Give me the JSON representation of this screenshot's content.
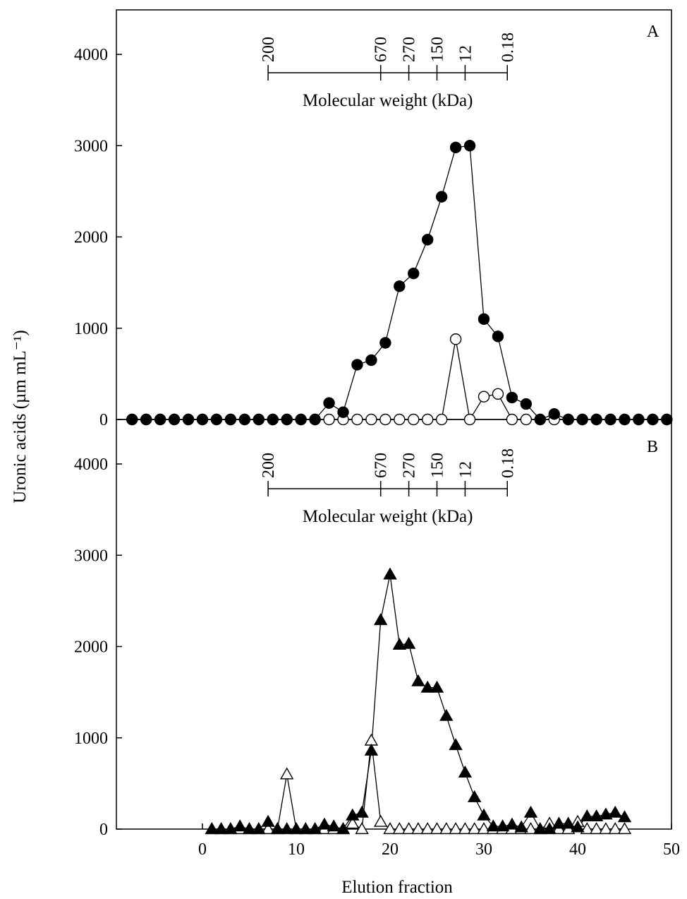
{
  "chart_data": [
    {
      "type": "scatter",
      "panel": "A",
      "ylabel": "Uronic acids (µm mL⁻¹)",
      "ylim": [
        0,
        4400
      ],
      "yticks": [
        "0",
        "1000",
        "2000",
        "3000",
        "4000"
      ],
      "xlim": [
        -8,
        50
      ],
      "mw_scale": {
        "title": "Molecular weight (kDa)",
        "labels": [
          "200",
          "670",
          "270",
          "150",
          "12",
          "0.18"
        ],
        "fractions": [
          7,
          19,
          22,
          25,
          28,
          32.5
        ]
      },
      "series": [
        {
          "marker": "filled-circle",
          "x": [
            -7.5,
            -6,
            -4.5,
            -3,
            -1.5,
            0,
            1.5,
            3,
            4.5,
            6,
            7.5,
            9,
            10.5,
            12,
            13.5,
            15,
            16.5,
            18,
            19.5,
            21,
            22.5,
            24,
            25.5,
            27,
            28.5,
            30,
            31.5,
            33,
            34.5,
            36,
            37.5,
            39,
            40.5,
            42,
            43.5,
            45,
            46.5,
            48,
            49.5
          ],
          "values": [
            0,
            0,
            0,
            0,
            0,
            0,
            0,
            0,
            0,
            0,
            0,
            0,
            0,
            0,
            180,
            80,
            600,
            650,
            840,
            1460,
            1600,
            1970,
            2440,
            2980,
            3000,
            1100,
            910,
            240,
            170,
            0,
            60,
            0,
            0,
            0,
            0,
            0,
            0,
            0,
            0
          ]
        },
        {
          "marker": "open-circle",
          "x": [
            -7.5,
            -6,
            -4.5,
            -3,
            -1.5,
            0,
            1.5,
            3,
            4.5,
            6,
            7.5,
            9,
            10.5,
            12,
            13.5,
            15,
            16.5,
            18,
            19.5,
            21,
            22.5,
            24,
            25.5,
            27,
            28.5,
            30,
            31.5,
            33,
            34.5,
            36,
            37.5,
            39,
            40.5,
            42,
            43.5,
            45,
            46.5,
            48,
            49.5
          ],
          "values": [
            0,
            0,
            0,
            0,
            0,
            0,
            0,
            0,
            0,
            0,
            0,
            0,
            0,
            0,
            0,
            0,
            0,
            0,
            0,
            0,
            0,
            0,
            0,
            880,
            0,
            250,
            280,
            0,
            0,
            0,
            0,
            0,
            0,
            0,
            0,
            0,
            0,
            0,
            0
          ]
        }
      ]
    },
    {
      "type": "scatter",
      "panel": "B",
      "xlabel": "Elution fraction",
      "ylim": [
        0,
        4400
      ],
      "yticks": [
        "0",
        "1000",
        "2000",
        "3000",
        "4000"
      ],
      "xlim": [
        -8,
        50
      ],
      "xticks": [
        "0",
        "10",
        "20",
        "30",
        "40",
        "50"
      ],
      "mw_scale": {
        "title": "Molecular weight (kDa)",
        "labels": [
          "200",
          "670",
          "270",
          "150",
          "12",
          "0.18"
        ],
        "fractions": [
          7,
          19,
          22,
          25,
          28,
          32.5
        ]
      },
      "series": [
        {
          "marker": "filled-triangle",
          "x": [
            1,
            2,
            3,
            4,
            5,
            6,
            7,
            8,
            9,
            10,
            11,
            12,
            13,
            14,
            15,
            16,
            17,
            18,
            19,
            20,
            21,
            22,
            23,
            24,
            25,
            26,
            27,
            28,
            29,
            30,
            31,
            32,
            33,
            34,
            35,
            36,
            37,
            38,
            39,
            40,
            41,
            42,
            43,
            44,
            45
          ],
          "values": [
            0,
            0,
            0,
            30,
            0,
            0,
            80,
            0,
            0,
            0,
            0,
            0,
            50,
            30,
            0,
            150,
            180,
            860,
            2290,
            2790,
            2020,
            2030,
            1620,
            1550,
            1550,
            1240,
            920,
            620,
            350,
            150,
            30,
            30,
            50,
            20,
            180,
            0,
            0,
            60,
            60,
            20,
            140,
            140,
            160,
            180,
            130
          ]
        },
        {
          "marker": "open-triangle",
          "x": [
            1,
            2,
            3,
            4,
            5,
            6,
            7,
            8,
            9,
            10,
            11,
            12,
            13,
            14,
            15,
            16,
            17,
            18,
            19,
            20,
            21,
            22,
            23,
            24,
            25,
            26,
            27,
            28,
            29,
            30,
            31,
            32,
            33,
            34,
            35,
            36,
            37,
            38,
            39,
            40,
            41,
            42,
            43,
            44,
            45
          ],
          "values": [
            0,
            0,
            0,
            0,
            0,
            0,
            0,
            0,
            600,
            0,
            0,
            0,
            0,
            0,
            0,
            60,
            0,
            970,
            80,
            0,
            0,
            0,
            0,
            0,
            0,
            0,
            0,
            0,
            0,
            0,
            0,
            0,
            0,
            0,
            0,
            0,
            60,
            0,
            0,
            80,
            0,
            0,
            0,
            0,
            0
          ]
        }
      ]
    }
  ]
}
